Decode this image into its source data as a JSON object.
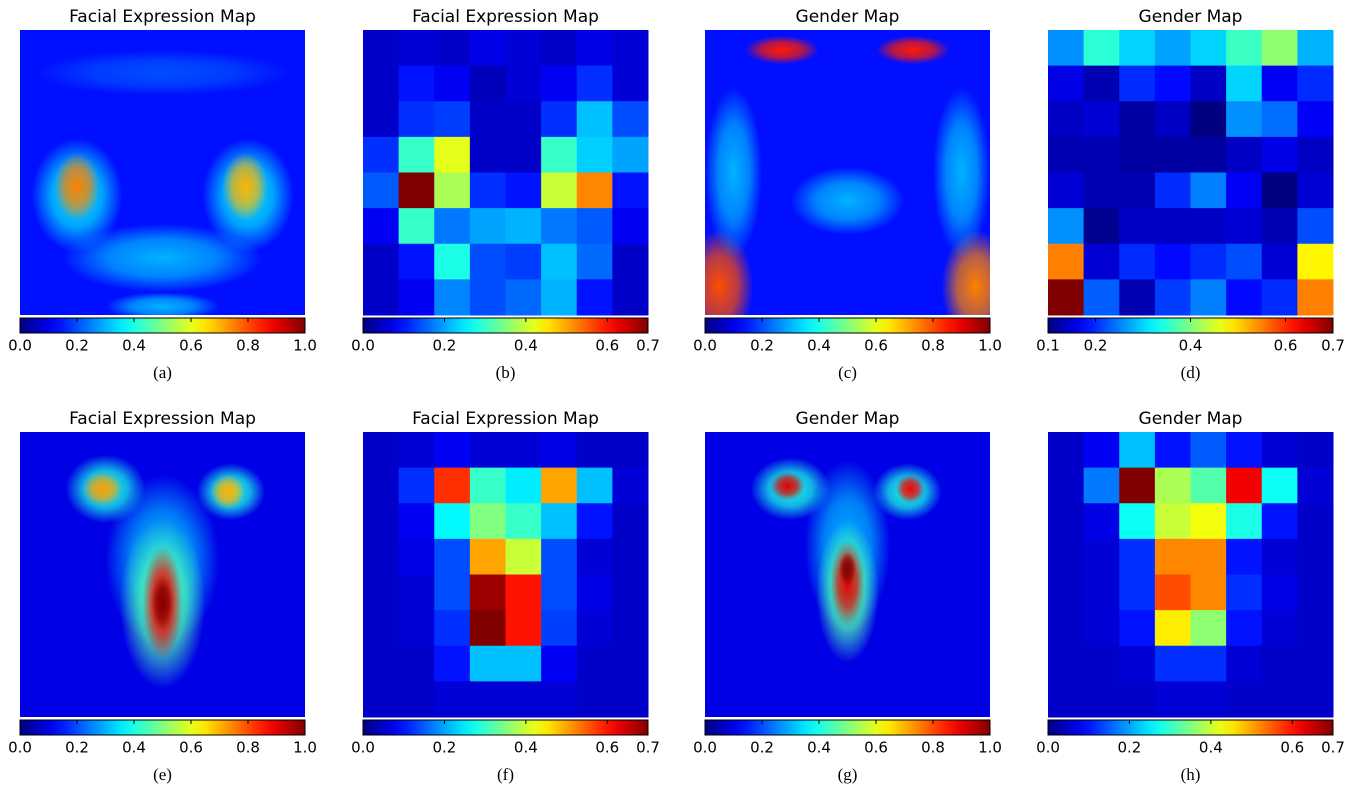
{
  "chart_data": [
    {
      "type": "image",
      "title": "Facial Expression Map",
      "caption": "(a)",
      "zlim": [
        0,
        1
      ],
      "zticks": [
        {
          "value": 0,
          "label": "0.0"
        },
        0.2,
        0.4,
        0.6,
        0.8,
        {
          "value": 1,
          "label": "1.0"
        }
      ]
    },
    {
      "type": "heatmap",
      "title": "Facial Expression Map",
      "caption": "(b)",
      "zlim": [
        0,
        0.7
      ],
      "zticks": [
        {
          "value": 0,
          "label": "0.0"
        },
        0.2,
        0.4,
        0.6,
        0.7
      ],
      "values": [
        [
          0.05,
          0.06,
          0.05,
          0.07,
          0.06,
          0.05,
          0.07,
          0.06
        ],
        [
          0.05,
          0.1,
          0.08,
          0.04,
          0.06,
          0.08,
          0.12,
          0.06
        ],
        [
          0.05,
          0.12,
          0.13,
          0.05,
          0.05,
          0.12,
          0.22,
          0.14
        ],
        [
          0.12,
          0.3,
          0.42,
          0.05,
          0.05,
          0.3,
          0.23,
          0.2
        ],
        [
          0.15,
          0.7,
          0.38,
          0.12,
          0.1,
          0.4,
          0.52,
          0.1
        ],
        [
          0.08,
          0.3,
          0.17,
          0.2,
          0.21,
          0.17,
          0.15,
          0.08
        ],
        [
          0.05,
          0.1,
          0.28,
          0.14,
          0.13,
          0.22,
          0.16,
          0.05
        ],
        [
          0.05,
          0.08,
          0.18,
          0.14,
          0.16,
          0.21,
          0.1,
          0.05
        ]
      ]
    },
    {
      "type": "image",
      "title": "Gender Map",
      "caption": "(c)",
      "zlim": [
        0,
        1
      ],
      "zticks": [
        {
          "value": 0,
          "label": "0.0"
        },
        0.2,
        0.4,
        0.6,
        0.8,
        {
          "value": 1,
          "label": "1.0"
        }
      ]
    },
    {
      "type": "heatmap",
      "title": "Gender Map",
      "caption": "(d)",
      "zlim": [
        0.1,
        0.7
      ],
      "zticks": [
        0.1,
        0.2,
        0.4,
        0.6,
        0.7
      ],
      "values": [
        [
          0.26,
          0.35,
          0.3,
          0.27,
          0.3,
          0.36,
          0.41,
          0.28
        ],
        [
          0.16,
          0.13,
          0.2,
          0.18,
          0.14,
          0.3,
          0.17,
          0.2
        ],
        [
          0.14,
          0.15,
          0.12,
          0.14,
          0.1,
          0.26,
          0.24,
          0.17
        ],
        [
          0.13,
          0.13,
          0.12,
          0.12,
          0.12,
          0.14,
          0.16,
          0.14
        ],
        [
          0.15,
          0.13,
          0.13,
          0.2,
          0.25,
          0.17,
          0.1,
          0.15
        ],
        [
          0.26,
          0.11,
          0.14,
          0.14,
          0.14,
          0.15,
          0.13,
          0.22
        ],
        [
          0.55,
          0.15,
          0.2,
          0.18,
          0.2,
          0.22,
          0.15,
          0.48
        ],
        [
          0.7,
          0.23,
          0.13,
          0.21,
          0.25,
          0.18,
          0.2,
          0.55
        ]
      ]
    },
    {
      "type": "image",
      "title": "Facial Expression Map",
      "caption": "(e)",
      "zlim": [
        0,
        1
      ],
      "zticks": [
        {
          "value": 0,
          "label": "0.0"
        },
        0.2,
        0.4,
        0.6,
        0.8,
        {
          "value": 1,
          "label": "1.0"
        }
      ]
    },
    {
      "type": "heatmap",
      "title": "Facial Expression Map",
      "caption": "(f)",
      "zlim": [
        0,
        0.7
      ],
      "zticks": [
        {
          "value": 0,
          "label": "0.0"
        },
        0.2,
        0.4,
        0.6,
        0.7
      ],
      "values": [
        [
          0.05,
          0.06,
          0.08,
          0.06,
          0.06,
          0.07,
          0.05,
          0.05
        ],
        [
          0.05,
          0.12,
          0.58,
          0.3,
          0.25,
          0.5,
          0.22,
          0.06
        ],
        [
          0.05,
          0.08,
          0.26,
          0.35,
          0.3,
          0.22,
          0.1,
          0.05
        ],
        [
          0.05,
          0.07,
          0.14,
          0.5,
          0.4,
          0.14,
          0.06,
          0.05
        ],
        [
          0.05,
          0.06,
          0.14,
          0.68,
          0.6,
          0.14,
          0.07,
          0.05
        ],
        [
          0.05,
          0.06,
          0.12,
          0.7,
          0.6,
          0.13,
          0.06,
          0.05
        ],
        [
          0.05,
          0.05,
          0.1,
          0.22,
          0.22,
          0.08,
          0.05,
          0.05
        ],
        [
          0.05,
          0.05,
          0.06,
          0.06,
          0.06,
          0.06,
          0.05,
          0.05
        ]
      ]
    },
    {
      "type": "image",
      "title": "Gender Map",
      "caption": "(g)",
      "zlim": [
        0,
        1
      ],
      "zticks": [
        {
          "value": 0,
          "label": "0.0"
        },
        0.2,
        0.4,
        0.6,
        0.8,
        {
          "value": 1,
          "label": "1.0"
        }
      ]
    },
    {
      "type": "heatmap",
      "title": "Gender Map",
      "caption": "(h)",
      "zlim": [
        0,
        0.7
      ],
      "zticks": [
        {
          "value": 0,
          "label": "0.0"
        },
        0.2,
        0.4,
        0.6,
        0.7
      ],
      "values": [
        [
          0.05,
          0.08,
          0.22,
          0.1,
          0.15,
          0.1,
          0.06,
          0.05
        ],
        [
          0.05,
          0.17,
          0.7,
          0.38,
          0.32,
          0.62,
          0.27,
          0.06
        ],
        [
          0.05,
          0.07,
          0.27,
          0.4,
          0.43,
          0.28,
          0.1,
          0.05
        ],
        [
          0.05,
          0.06,
          0.12,
          0.52,
          0.52,
          0.1,
          0.06,
          0.05
        ],
        [
          0.05,
          0.06,
          0.12,
          0.56,
          0.52,
          0.12,
          0.07,
          0.05
        ],
        [
          0.05,
          0.06,
          0.1,
          0.45,
          0.36,
          0.1,
          0.06,
          0.05
        ],
        [
          0.05,
          0.05,
          0.06,
          0.12,
          0.12,
          0.06,
          0.05,
          0.05
        ],
        [
          0.05,
          0.05,
          0.05,
          0.06,
          0.06,
          0.05,
          0.05,
          0.05
        ]
      ]
    }
  ]
}
